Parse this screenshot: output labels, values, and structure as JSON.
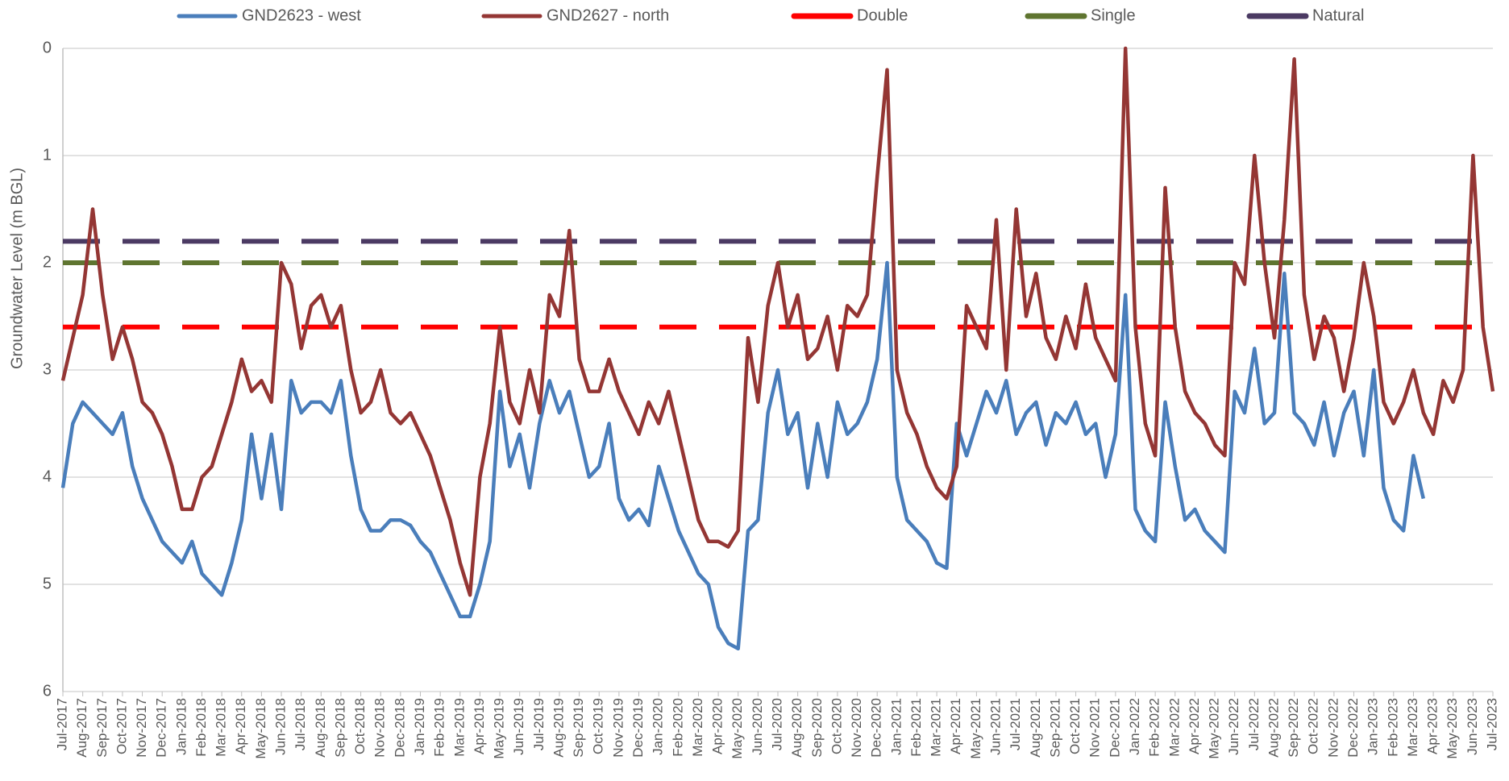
{
  "chart_data": {
    "type": "line",
    "y_label": "Groundwater Level (m BGL)",
    "ylim": [
      0,
      6
    ],
    "y_inverted": true,
    "yticks": [
      0,
      1,
      2,
      3,
      4,
      5,
      6
    ],
    "grid": true,
    "legend": "top",
    "categories": [
      "Jul-2017",
      null,
      "Aug-2017",
      null,
      "Sep-2017",
      null,
      "Oct-2017",
      null,
      "Nov-2017",
      null,
      "Dec-2017",
      null,
      "Jan-2018",
      null,
      "Feb-2018",
      null,
      "Mar-2018",
      null,
      "Apr-2018",
      null,
      "May-2018",
      null,
      "Jun-2018",
      null,
      "Jul-2018",
      null,
      "Aug-2018",
      null,
      "Sep-2018",
      null,
      "Oct-2018",
      null,
      "Nov-2018",
      null,
      "Dec-2018",
      null,
      "Jan-2019",
      null,
      "Feb-2019",
      null,
      "Mar-2019",
      null,
      "Apr-2019",
      null,
      "May-2019",
      null,
      "Jun-2019",
      null,
      "Jul-2019",
      null,
      "Aug-2019",
      null,
      "Sep-2019",
      null,
      "Oct-2019",
      null,
      "Nov-2019",
      null,
      "Dec-2019",
      null,
      "Jan-2020",
      null,
      "Feb-2020",
      null,
      "Mar-2020",
      null,
      "Apr-2020",
      null,
      "May-2020",
      null,
      "Jun-2020",
      null,
      "Jul-2020",
      null,
      "Aug-2020",
      null,
      "Sep-2020",
      null,
      "Oct-2020",
      null,
      "Nov-2020",
      null,
      "Dec-2020",
      null,
      "Jan-2021",
      null,
      "Feb-2021",
      null,
      "Mar-2021",
      null,
      "Apr-2021",
      null,
      "May-2021",
      null,
      "Jun-2021",
      null,
      "Jul-2021",
      null,
      "Aug-2021",
      null,
      "Sep-2021",
      null,
      "Oct-2021",
      null,
      "Nov-2021",
      null,
      "Dec-2021",
      null,
      "Jan-2022",
      null,
      "Feb-2022",
      null,
      "Mar-2022",
      null,
      "Apr-2022",
      null,
      "May-2022",
      null,
      "Jun-2022",
      null,
      "Jul-2022",
      null,
      "Aug-2022",
      null,
      "Sep-2022",
      null,
      "Oct-2022",
      null,
      "Nov-2022",
      null,
      "Dec-2022",
      null,
      "Jan-2023",
      null,
      "Feb-2023",
      null,
      "Mar-2023",
      null,
      "Apr-2023",
      null,
      "May-2023",
      null,
      "Jun-2023",
      null,
      "Jul-2023"
    ],
    "series": [
      {
        "name": "GND2623 - west",
        "color": "#4a7ebb",
        "values": [
          4.1,
          3.5,
          3.3,
          3.4,
          3.5,
          3.6,
          3.4,
          3.9,
          4.2,
          4.4,
          4.6,
          4.7,
          4.8,
          4.6,
          4.9,
          5.0,
          5.1,
          4.8,
          4.4,
          3.6,
          4.2,
          3.6,
          4.3,
          3.1,
          3.4,
          3.3,
          3.3,
          3.4,
          3.1,
          3.8,
          4.3,
          4.5,
          4.5,
          4.4,
          4.4,
          4.45,
          4.6,
          4.7,
          4.9,
          5.1,
          5.3,
          5.3,
          5.0,
          4.6,
          3.2,
          3.9,
          3.6,
          4.1,
          3.5,
          3.1,
          3.4,
          3.2,
          3.6,
          4.0,
          3.9,
          3.5,
          4.2,
          4.4,
          4.3,
          4.45,
          3.9,
          4.2,
          4.5,
          4.7,
          4.9,
          5.0,
          5.4,
          5.55,
          5.6,
          4.5,
          4.4,
          3.4,
          3.0,
          3.6,
          3.4,
          4.1,
          3.5,
          4.0,
          3.3,
          3.6,
          3.5,
          3.3,
          2.9,
          2.0,
          4.0,
          4.4,
          4.5,
          4.6,
          4.8,
          4.85,
          3.5,
          3.8,
          3.5,
          3.2,
          3.4,
          3.1,
          3.6,
          3.4,
          3.3,
          3.7,
          3.4,
          3.5,
          3.3,
          3.6,
          3.5,
          4.0,
          3.6,
          2.3,
          4.3,
          4.5,
          4.6,
          3.3,
          3.9,
          4.4,
          4.3,
          4.5,
          4.6,
          4.7,
          3.2,
          3.4,
          2.8,
          3.5,
          3.4,
          2.1,
          3.4,
          3.5,
          3.7,
          3.3,
          3.8,
          3.4,
          3.2,
          3.8,
          3.0,
          4.1,
          4.4,
          4.5,
          3.8,
          4.2,
          null,
          null,
          null,
          null,
          null,
          null,
          null
        ]
      },
      {
        "name": "GND2627 - north",
        "color": "#943634",
        "values": [
          3.1,
          2.7,
          2.3,
          1.5,
          2.3,
          2.9,
          2.6,
          2.9,
          3.3,
          3.4,
          3.6,
          3.9,
          4.3,
          4.3,
          4.0,
          3.9,
          3.6,
          3.3,
          2.9,
          3.2,
          3.1,
          3.3,
          2.0,
          2.2,
          2.8,
          2.4,
          2.3,
          2.6,
          2.4,
          3.0,
          3.4,
          3.3,
          3.0,
          3.4,
          3.5,
          3.4,
          3.6,
          3.8,
          4.1,
          4.4,
          4.8,
          5.1,
          4.0,
          3.5,
          2.6,
          3.3,
          3.5,
          3.0,
          3.4,
          2.3,
          2.5,
          1.7,
          2.9,
          3.2,
          3.2,
          2.9,
          3.2,
          3.4,
          3.6,
          3.3,
          3.5,
          3.2,
          3.6,
          4.0,
          4.4,
          4.6,
          4.6,
          4.65,
          4.5,
          2.7,
          3.3,
          2.4,
          2.0,
          2.6,
          2.3,
          2.9,
          2.8,
          2.5,
          3.0,
          2.4,
          2.5,
          2.3,
          1.2,
          0.2,
          3.0,
          3.4,
          3.6,
          3.9,
          4.1,
          4.2,
          3.9,
          2.4,
          2.6,
          2.8,
          1.6,
          3.0,
          1.5,
          2.5,
          2.1,
          2.7,
          2.9,
          2.5,
          2.8,
          2.2,
          2.7,
          2.9,
          3.1,
          0.0,
          2.6,
          3.5,
          3.8,
          1.3,
          2.6,
          3.2,
          3.4,
          3.5,
          3.7,
          3.8,
          2.0,
          2.2,
          1.0,
          2.0,
          2.7,
          1.6,
          0.1,
          2.3,
          2.9,
          2.5,
          2.7,
          3.2,
          2.7,
          2.0,
          2.5,
          3.3,
          3.5,
          3.3,
          3.0,
          3.4,
          3.6,
          3.1,
          3.3,
          3.0,
          1.0,
          2.6,
          3.2
        ]
      }
    ],
    "hlines": [
      {
        "name": "Double",
        "color": "#ff0000",
        "value": 2.6
      },
      {
        "name": "Single",
        "color": "#5f7530",
        "value": 2.0
      },
      {
        "name": "Natural",
        "color": "#4b3a63",
        "value": 1.8
      }
    ]
  }
}
